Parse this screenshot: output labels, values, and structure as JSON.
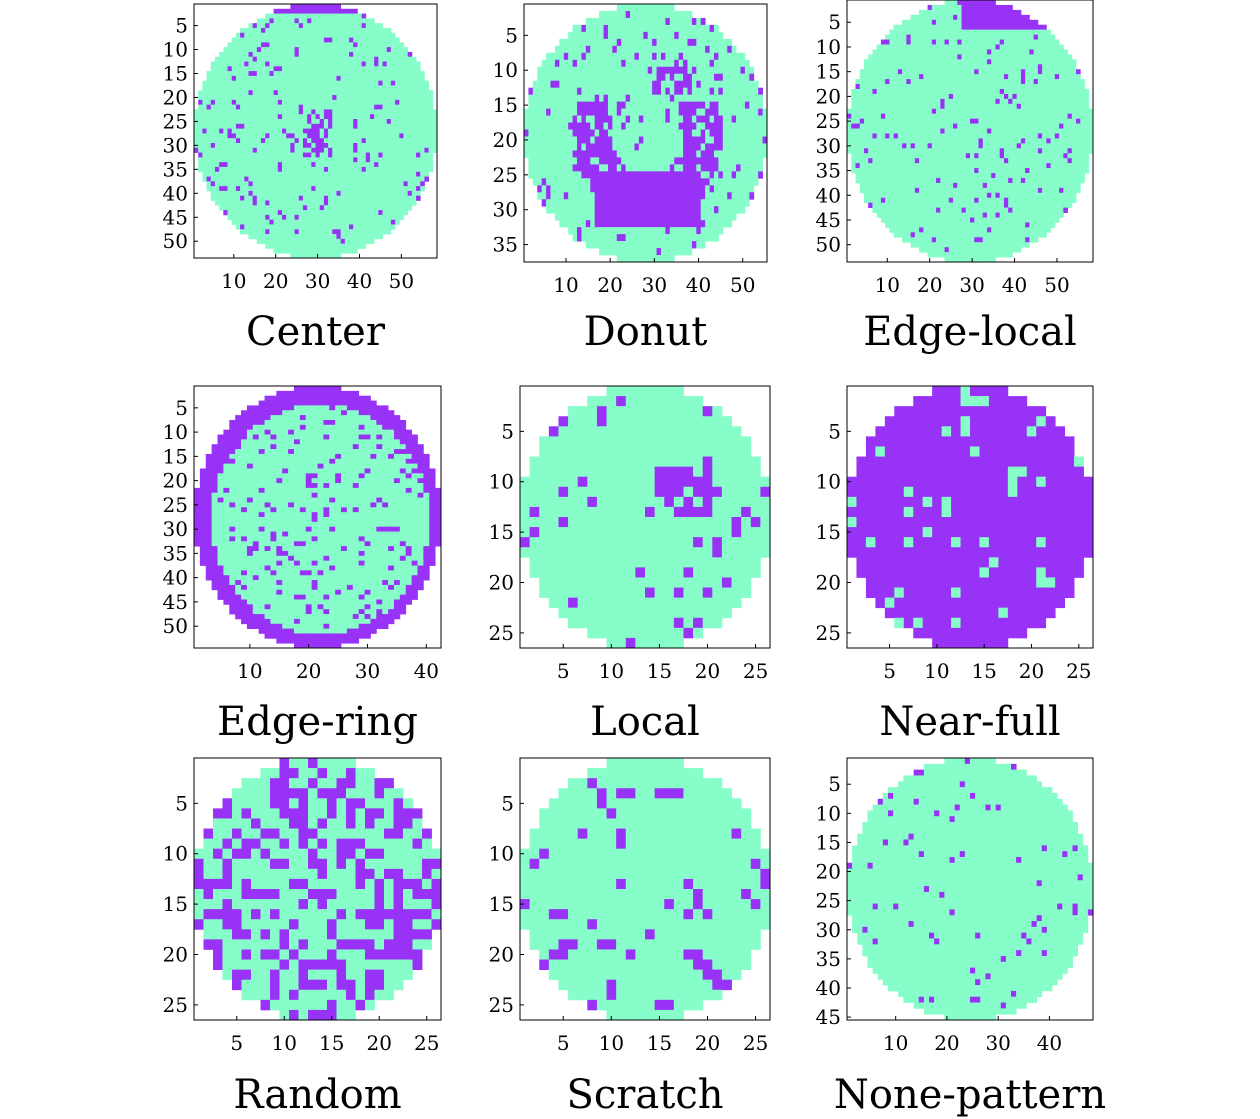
{
  "colors": {
    "background": "#87fdc9",
    "defect": "#9932f7",
    "frame": "#000000"
  },
  "chart_data": [
    {
      "type": "heatmap",
      "label": "Center",
      "rows": 53,
      "cols": 58,
      "xticks": [
        10,
        20,
        30,
        40,
        50
      ],
      "yticks": [
        5,
        10,
        15,
        20,
        25,
        30,
        35,
        40,
        45,
        50
      ],
      "pattern": "center",
      "edge_ring": false,
      "edge_local": "top",
      "noise": 0.06,
      "seed": 11
    },
    {
      "type": "heatmap",
      "label": "Donut",
      "rows": 37,
      "cols": 55,
      "xticks": [
        10,
        20,
        30,
        40,
        50
      ],
      "yticks": [
        5,
        10,
        15,
        20,
        25,
        30,
        35
      ],
      "pattern": "donut",
      "edge_ring": false,
      "edge_local": null,
      "noise": 0.07,
      "seed": 23
    },
    {
      "type": "heatmap",
      "label": "Edge-local",
      "rows": 53,
      "cols": 58,
      "xticks": [
        10,
        20,
        30,
        40,
        50
      ],
      "yticks": [
        5,
        10,
        15,
        20,
        25,
        30,
        35,
        40,
        45,
        50
      ],
      "pattern": "edge-local",
      "edge_ring": false,
      "edge_local": "top",
      "noise": 0.05,
      "seed": 37
    },
    {
      "type": "heatmap",
      "label": "Edge-ring",
      "rows": 54,
      "cols": 42,
      "xticks": [
        10,
        20,
        30,
        40
      ],
      "yticks": [
        5,
        10,
        15,
        20,
        25,
        30,
        35,
        40,
        45,
        50
      ],
      "pattern": "edge-ring",
      "edge_ring": true,
      "edge_local": null,
      "noise": 0.12,
      "seed": 41
    },
    {
      "type": "heatmap",
      "label": "Local",
      "rows": 26,
      "cols": 26,
      "xticks": [
        5,
        10,
        15,
        20,
        25
      ],
      "yticks": [
        5,
        10,
        15,
        20,
        25
      ],
      "pattern": "local",
      "edge_ring": false,
      "edge_local": null,
      "noise": 0.07,
      "seed": 53
    },
    {
      "type": "heatmap",
      "label": "Near-full",
      "rows": 26,
      "cols": 26,
      "xticks": [
        5,
        10,
        15,
        20,
        25
      ],
      "yticks": [
        5,
        10,
        15,
        20,
        25
      ],
      "pattern": "near-full",
      "edge_ring": false,
      "edge_local": null,
      "noise": 0.06,
      "seed": 61
    },
    {
      "type": "heatmap",
      "label": "Random",
      "rows": 26,
      "cols": 26,
      "xticks": [
        5,
        10,
        15,
        20,
        25
      ],
      "yticks": [
        5,
        10,
        15,
        20,
        25
      ],
      "pattern": "random",
      "edge_ring": false,
      "edge_local": null,
      "noise": 0.42,
      "seed": 71
    },
    {
      "type": "heatmap",
      "label": "Scratch",
      "rows": 26,
      "cols": 26,
      "xticks": [
        5,
        10,
        15,
        20,
        25
      ],
      "yticks": [
        5,
        10,
        15,
        20,
        25
      ],
      "pattern": "scratch",
      "edge_ring": false,
      "edge_local": null,
      "noise": 0.08,
      "seed": 83
    },
    {
      "type": "heatmap",
      "label": "None-pattern",
      "rows": 45,
      "cols": 48,
      "xticks": [
        10,
        20,
        30,
        40
      ],
      "yticks": [
        5,
        10,
        15,
        20,
        25,
        30,
        35,
        40,
        45
      ],
      "pattern": "none",
      "edge_ring": false,
      "edge_local": null,
      "noise": 0.04,
      "seed": 97
    }
  ]
}
